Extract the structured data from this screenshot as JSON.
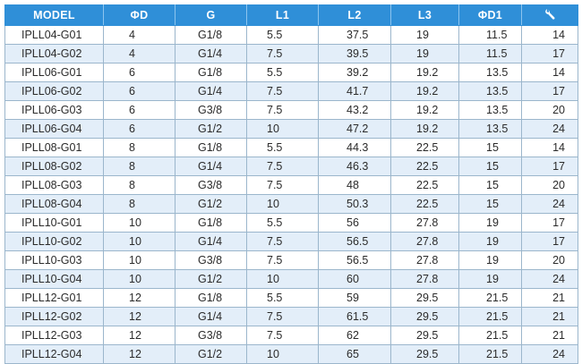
{
  "headers": {
    "model": "MODEL",
    "d": "ΦD",
    "g": "G",
    "l1": "L1",
    "l2": "L2",
    "l3": "L3",
    "d1": "ΦD1",
    "wrench_icon": "wrench-icon"
  },
  "rows": [
    [
      "IPLL04-G01",
      "4",
      "G1/8",
      "5.5",
      "37.5",
      "19",
      "11.5",
      "14"
    ],
    [
      "IPLL04-G02",
      "4",
      "G1/4",
      "7.5",
      "39.5",
      "19",
      "11.5",
      "17"
    ],
    [
      "IPLL06-G01",
      "6",
      "G1/8",
      "5.5",
      "39.2",
      "19.2",
      "13.5",
      "14"
    ],
    [
      "IPLL06-G02",
      "6",
      "G1/4",
      "7.5",
      "41.7",
      "19.2",
      "13.5",
      "17"
    ],
    [
      "IPLL06-G03",
      "6",
      "G3/8",
      "7.5",
      "43.2",
      "19.2",
      "13.5",
      "20"
    ],
    [
      "IPLL06-G04",
      "6",
      "G1/2",
      "10",
      "47.2",
      "19.2",
      "13.5",
      "24"
    ],
    [
      "IPLL08-G01",
      "8",
      "G1/8",
      "5.5",
      "44.3",
      "22.5",
      "15",
      "14"
    ],
    [
      "IPLL08-G02",
      "8",
      "G1/4",
      "7.5",
      "46.3",
      "22.5",
      "15",
      "17"
    ],
    [
      "IPLL08-G03",
      "8",
      "G3/8",
      "7.5",
      "48",
      "22.5",
      "15",
      "20"
    ],
    [
      "IPLL08-G04",
      "8",
      "G1/2",
      "10",
      "50.3",
      "22.5",
      "15",
      "24"
    ],
    [
      "IPLL10-G01",
      "10",
      "G1/8",
      "5.5",
      "56",
      "27.8",
      "19",
      "17"
    ],
    [
      "IPLL10-G02",
      "10",
      "G1/4",
      "7.5",
      "56.5",
      "27.8",
      "19",
      "17"
    ],
    [
      "IPLL10-G03",
      "10",
      "G3/8",
      "7.5",
      "56.5",
      "27.8",
      "19",
      "20"
    ],
    [
      "IPLL10-G04",
      "10",
      "G1/2",
      "10",
      "60",
      "27.8",
      "19",
      "24"
    ],
    [
      "IPLL12-G01",
      "12",
      "G1/8",
      "5.5",
      "59",
      "29.5",
      "21.5",
      "21"
    ],
    [
      "IPLL12-G02",
      "12",
      "G1/4",
      "7.5",
      "61.5",
      "29.5",
      "21.5",
      "21"
    ],
    [
      "IPLL12-G03",
      "12",
      "G3/8",
      "7.5",
      "62",
      "29.5",
      "21.5",
      "21"
    ],
    [
      "IPLL12-G04",
      "12",
      "G1/2",
      "10",
      "65",
      "29.5",
      "21.5",
      "24"
    ]
  ],
  "colors": {
    "header_bg": "#2f8fd8",
    "header_text": "#ffffff",
    "row_alt": "#e3eef9",
    "border": "#9bb6cc"
  }
}
